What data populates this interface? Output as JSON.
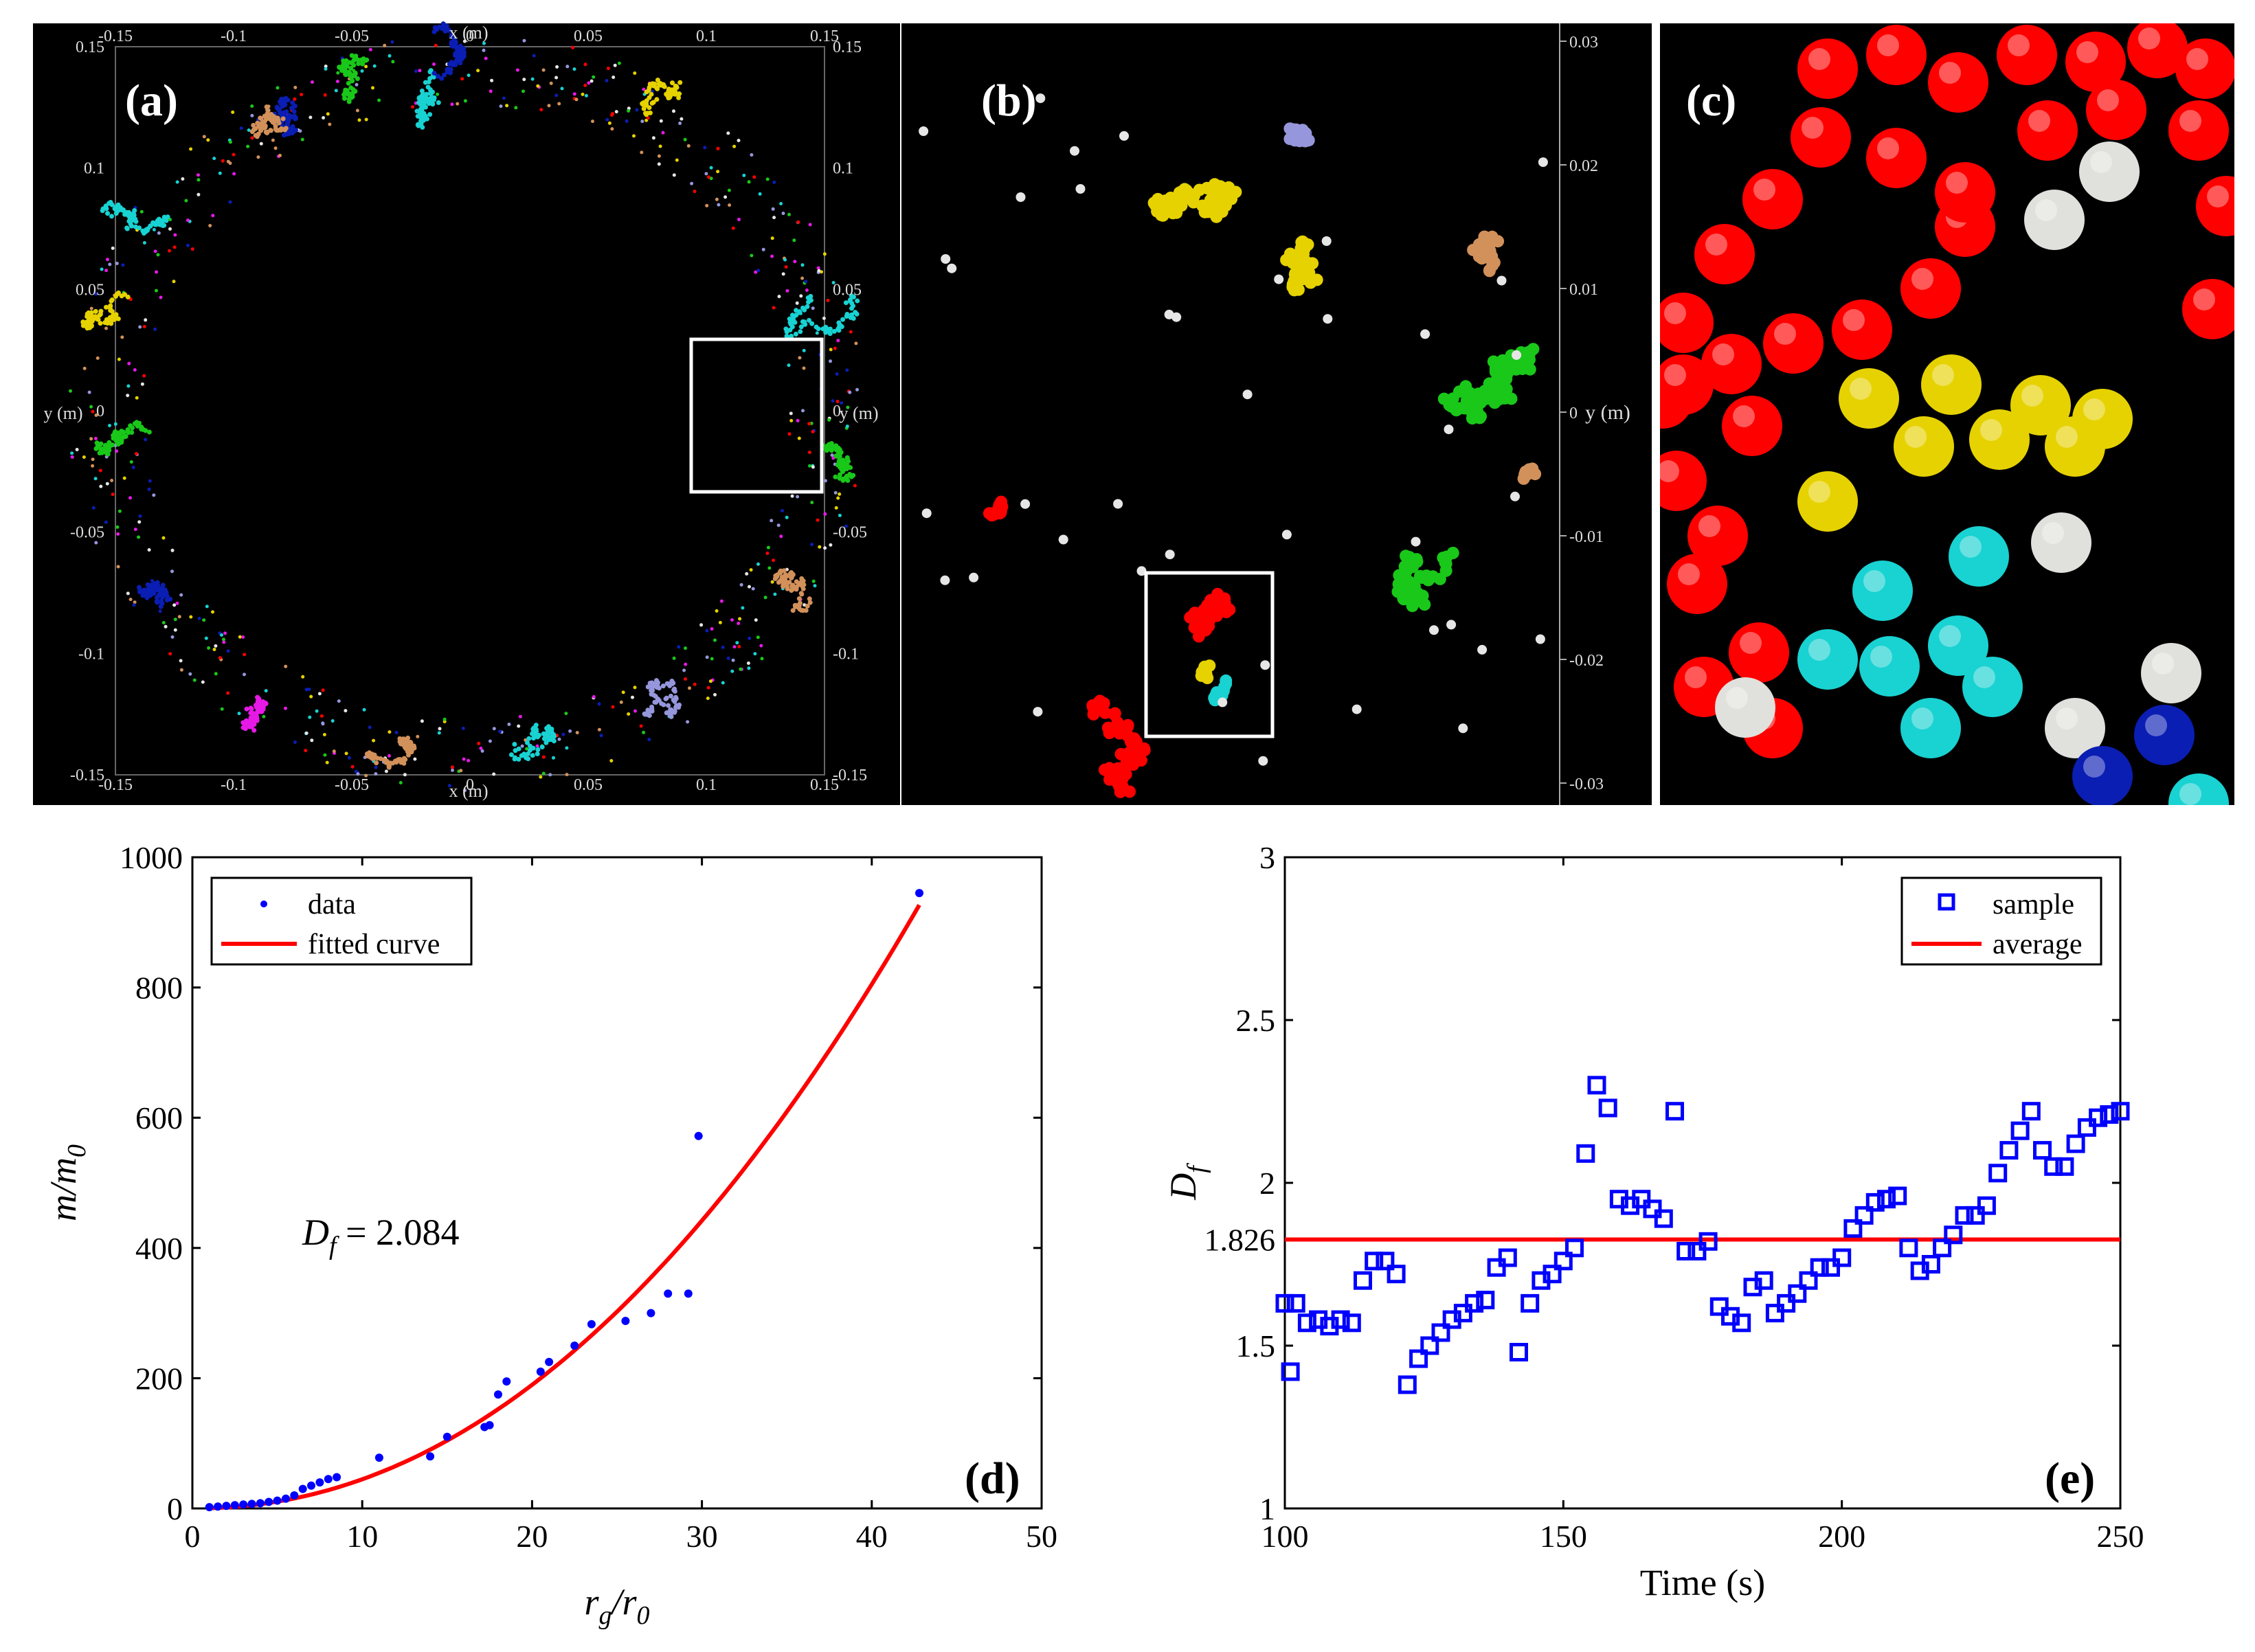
{
  "figure": {
    "panels": {
      "a": {
        "label": "(a)",
        "xlabel": "x (m)",
        "ylabel": "y (m)",
        "ticks": [
          "-0.15",
          "-0.1",
          "-0.05",
          "0",
          "0.05",
          "0.1",
          "0.15"
        ]
      },
      "b": {
        "label": "(b)",
        "ylabel": "y (m)",
        "ticks": [
          "0.03",
          "0.02",
          "0.01",
          "0",
          "-0.01",
          "-0.02",
          "-0.03"
        ]
      },
      "c": {
        "label": "(c)"
      },
      "d": {
        "label": "(d)"
      },
      "e": {
        "label": "(e)"
      }
    }
  },
  "colors": {
    "red": "#ff0000",
    "blue": "#0000ee",
    "yellow": "#e6d200",
    "green": "#19c819",
    "cyan": "#19d2d2",
    "white": "#e6e6e6",
    "tan": "#d2915a",
    "navy": "#0a1eb4",
    "lavender": "#9696dc",
    "magenta": "#e619e6"
  },
  "chart_data": [
    {
      "id": "d",
      "type": "scatter",
      "title": "",
      "xlabel": "r_g/r_0",
      "ylabel": "m/m_0",
      "xlim": [
        0,
        50
      ],
      "ylim": [
        0,
        1000
      ],
      "xticks": [
        0,
        10,
        20,
        30,
        40,
        50
      ],
      "yticks": [
        0,
        200,
        400,
        600,
        800,
        1000
      ],
      "legend": {
        "placement": "top-left",
        "entries": [
          "data",
          "fitted curve"
        ]
      },
      "annotation": {
        "prefix": "D",
        "sub": "f",
        "suffix": " = 2.084"
      },
      "series": [
        {
          "name": "data",
          "marker": "dot",
          "color": "#0000ff",
          "x": [
            1,
            1.5,
            2,
            2.5,
            3,
            3.5,
            4,
            4.5,
            5,
            5.5,
            6,
            6.5,
            7,
            7.5,
            8,
            8.5,
            11,
            14,
            15,
            17.2,
            17.5,
            18,
            18.5,
            20.5,
            21,
            22.5,
            23.5,
            25.5,
            27,
            28,
            29.2,
            29.8,
            42.8
          ],
          "y": [
            2,
            3,
            4,
            5,
            6,
            7,
            8,
            10,
            12,
            15,
            20,
            30,
            35,
            40,
            45,
            48,
            78,
            80,
            110,
            125,
            128,
            175,
            195,
            210,
            225,
            250,
            283,
            288,
            300,
            330,
            330,
            572,
            945
          ]
        },
        {
          "name": "fitted curve",
          "type": "line",
          "color": "#ff0000",
          "formula": "y = a * x^2.084",
          "a": 0.369,
          "exponent": 2.084,
          "xrange": [
            1,
            42.8
          ]
        }
      ]
    },
    {
      "id": "e",
      "type": "scatter",
      "title": "",
      "xlabel": "Time (s)",
      "ylabel": "D_f",
      "xlim": [
        100,
        250
      ],
      "ylim": [
        1,
        3
      ],
      "xticks": [
        100,
        150,
        200,
        250
      ],
      "yticks": [
        1,
        1.5,
        2,
        2.5,
        3
      ],
      "extra_ytick": "1.826",
      "legend": {
        "placement": "top-right",
        "entries": [
          "sample",
          "average"
        ]
      },
      "series": [
        {
          "name": "sample",
          "marker": "square",
          "color": "#0000ff",
          "x": [
            100,
            101,
            102,
            104,
            106,
            108,
            110,
            112,
            114,
            116,
            118,
            120,
            122,
            124,
            126,
            128,
            130,
            132,
            134,
            136,
            138,
            140,
            142,
            144,
            146,
            148,
            150,
            152,
            154,
            156,
            158,
            160,
            162,
            164,
            166,
            168,
            170,
            172,
            174,
            176,
            178,
            180,
            182,
            184,
            186,
            188,
            190,
            192,
            194,
            196,
            198,
            200,
            202,
            204,
            206,
            208,
            210,
            212,
            214,
            216,
            218,
            220,
            222,
            224,
            226,
            228,
            230,
            232,
            234,
            236,
            238,
            240,
            242,
            244,
            246,
            248,
            250
          ],
          "y": [
            1.63,
            1.42,
            1.63,
            1.57,
            1.58,
            1.56,
            1.58,
            1.57,
            1.7,
            1.76,
            1.76,
            1.72,
            1.38,
            1.46,
            1.5,
            1.54,
            1.58,
            1.6,
            1.63,
            1.64,
            1.74,
            1.77,
            1.48,
            1.63,
            1.7,
            1.72,
            1.76,
            1.8,
            2.09,
            2.3,
            2.23,
            1.95,
            1.93,
            1.95,
            1.92,
            1.89,
            2.22,
            1.79,
            1.79,
            1.82,
            1.62,
            1.59,
            1.57,
            1.68,
            1.7,
            1.6,
            1.63,
            1.66,
            1.7,
            1.74,
            1.74,
            1.77,
            1.86,
            1.9,
            1.94,
            1.95,
            1.96,
            1.8,
            1.73,
            1.75,
            1.8,
            1.84,
            1.9,
            1.9,
            1.93,
            2.03,
            2.1,
            2.16,
            2.22,
            2.1,
            2.05,
            2.05,
            2.12,
            2.17,
            2.2,
            2.21,
            2.22
          ]
        },
        {
          "name": "average",
          "type": "line",
          "color": "#ff0000",
          "value": 1.826
        }
      ]
    }
  ]
}
